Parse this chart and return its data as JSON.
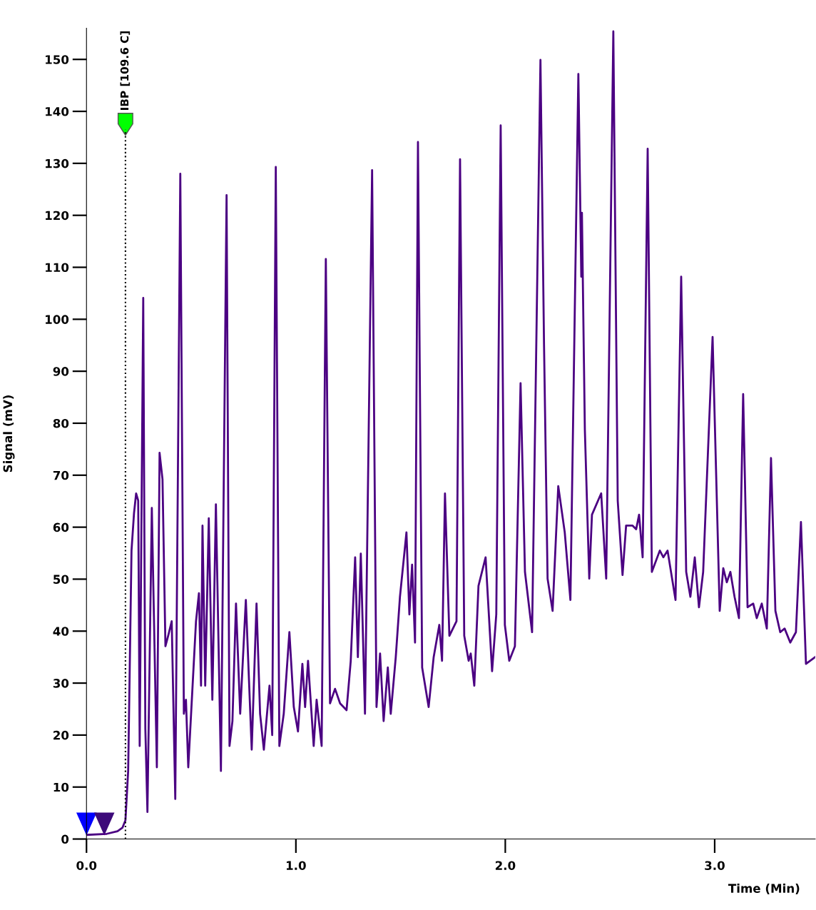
{
  "chart_data": {
    "type": "line",
    "xlabel": "Time (Min)",
    "ylabel": "Signal (mV)",
    "xlim": [
      0,
      3.48
    ],
    "ylim": [
      0,
      156
    ],
    "xticks": [
      {
        "value": 0,
        "label": "0.0"
      },
      {
        "value": 1,
        "label": "1.0"
      },
      {
        "value": 2,
        "label": "2.0"
      },
      {
        "value": 3,
        "label": "3.0"
      }
    ],
    "yticks": [
      0,
      10,
      20,
      30,
      40,
      50,
      60,
      70,
      80,
      90,
      100,
      110,
      120,
      130,
      140,
      150
    ],
    "grid": false,
    "legend": false,
    "marker": "none",
    "line_style": "solid",
    "ref_lines": [
      {
        "axis": "x",
        "value": 0.186,
        "label": "IBP [109.6 C]",
        "color": "#000000",
        "line_style": "dotted"
      }
    ],
    "series": [
      {
        "color": "#4b0082",
        "x": [
          0.0,
          0.097,
          0.148,
          0.172,
          0.186,
          0.199,
          0.215,
          0.227,
          0.237,
          0.247,
          0.254,
          0.271,
          0.281,
          0.291,
          0.312,
          0.336,
          0.349,
          0.363,
          0.377,
          0.39,
          0.407,
          0.424,
          0.448,
          0.465,
          0.475,
          0.486,
          0.523,
          0.537,
          0.547,
          0.554,
          0.567,
          0.584,
          0.601,
          0.618,
          0.642,
          0.669,
          0.683,
          0.697,
          0.714,
          0.734,
          0.761,
          0.789,
          0.812,
          0.829,
          0.847,
          0.874,
          0.887,
          0.904,
          0.921,
          0.942,
          0.969,
          0.99,
          1.01,
          1.031,
          1.044,
          1.058,
          1.085,
          1.099,
          1.123,
          1.143,
          1.163,
          1.187,
          1.211,
          1.242,
          1.262,
          1.283,
          1.296,
          1.31,
          1.33,
          1.364,
          1.385,
          1.402,
          1.419,
          1.439,
          1.453,
          1.477,
          1.497,
          1.528,
          1.542,
          1.555,
          1.569,
          1.583,
          1.603,
          1.634,
          1.658,
          1.685,
          1.698,
          1.712,
          1.733,
          1.767,
          1.784,
          1.804,
          1.825,
          1.835,
          1.852,
          1.872,
          1.906,
          1.937,
          1.957,
          1.978,
          1.998,
          2.019,
          2.046,
          2.073,
          2.094,
          2.128,
          2.168,
          2.185,
          2.202,
          2.226,
          2.253,
          2.284,
          2.311,
          2.349,
          2.363,
          2.366,
          2.38,
          2.401,
          2.414,
          2.458,
          2.482,
          2.516,
          2.537,
          2.56,
          2.577,
          2.608,
          2.625,
          2.639,
          2.656,
          2.68,
          2.7,
          2.738,
          2.755,
          2.775,
          2.813,
          2.84,
          2.864,
          2.884,
          2.905,
          2.925,
          2.945,
          2.99,
          3.024,
          3.041,
          3.058,
          3.075,
          3.095,
          3.116,
          3.136,
          3.157,
          3.184,
          3.201,
          3.225,
          3.249,
          3.269,
          3.29,
          3.313,
          3.334,
          3.361,
          3.388,
          3.412,
          3.436,
          3.48
        ],
        "values": [
          0.8,
          1.0,
          1.5,
          2.2,
          3.6,
          13.1,
          55.5,
          62.7,
          66.5,
          65.1,
          17.9,
          104.1,
          21.3,
          5.2,
          63.7,
          13.8,
          74.3,
          69.2,
          37.1,
          39.1,
          41.9,
          7.7,
          128.0,
          24.1,
          26.8,
          13.8,
          41.9,
          47.3,
          29.5,
          60.3,
          29.5,
          61.7,
          26.8,
          64.4,
          13.1,
          123.9,
          17.9,
          22.7,
          45.3,
          24.1,
          46.0,
          17.2,
          45.3,
          24.1,
          17.2,
          29.5,
          20.0,
          129.3,
          17.9,
          24.1,
          39.8,
          25.4,
          20.7,
          33.7,
          25.4,
          34.3,
          17.9,
          26.8,
          17.9,
          111.6,
          26.1,
          28.9,
          26.1,
          24.8,
          34.3,
          54.2,
          35.0,
          54.9,
          24.1,
          128.7,
          25.4,
          35.7,
          22.7,
          33.0,
          24.1,
          35.0,
          46.6,
          59.0,
          43.2,
          52.8,
          37.8,
          134.1,
          33.0,
          25.4,
          35.0,
          41.2,
          34.3,
          66.5,
          39.1,
          41.9,
          130.8,
          39.1,
          34.3,
          35.7,
          29.5,
          48.7,
          54.2,
          32.3,
          43.2,
          137.3,
          41.2,
          34.3,
          37.1,
          87.7,
          51.4,
          39.8,
          149.9,
          95.2,
          50.1,
          43.9,
          67.9,
          59.0,
          46.0,
          147.2,
          108.2,
          120.5,
          78.8,
          50.1,
          62.4,
          66.5,
          50.1,
          155.4,
          65.1,
          50.8,
          60.3,
          60.3,
          59.6,
          62.4,
          54.2,
          132.8,
          51.4,
          55.5,
          54.2,
          55.5,
          46.0,
          108.2,
          51.4,
          46.6,
          54.2,
          44.6,
          51.4,
          96.6,
          43.9,
          52.1,
          49.4,
          51.4,
          46.6,
          42.5,
          85.6,
          44.6,
          45.3,
          42.5,
          45.3,
          40.5,
          73.3,
          43.9,
          39.8,
          40.5,
          37.8,
          39.8,
          61.0,
          33.7,
          35.0
        ]
      }
    ]
  }
}
